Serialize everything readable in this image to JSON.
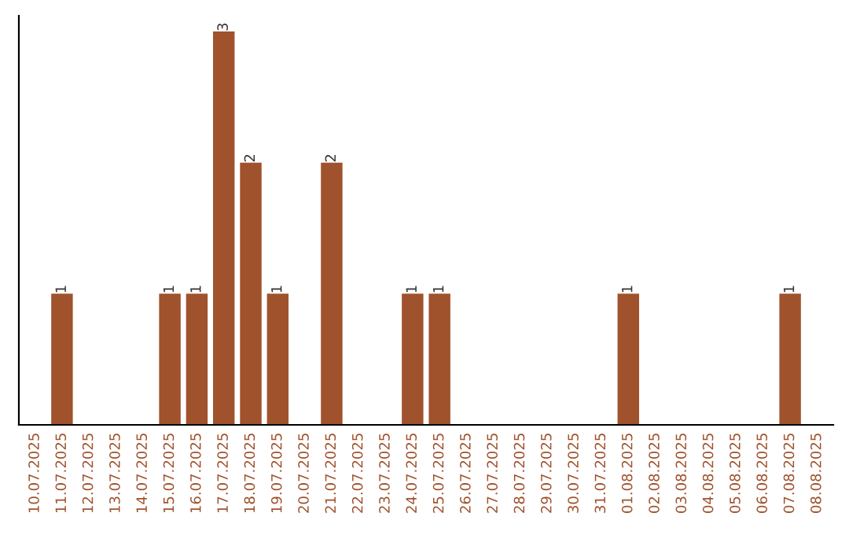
{
  "chart_data": {
    "type": "bar",
    "categories": [
      "10.07.2025",
      "11.07.2025",
      "12.07.2025",
      "13.07.2025",
      "14.07.2025",
      "15.07.2025",
      "16.07.2025",
      "17.07.2025",
      "18.07.2025",
      "19.07.2025",
      "20.07.2025",
      "21.07.2025",
      "22.07.2025",
      "23.07.2025",
      "24.07.2025",
      "25.07.2025",
      "26.07.2025",
      "27.07.2025",
      "28.07.2025",
      "29.07.2025",
      "30.07.2025",
      "31.07.2025",
      "01.08.2025",
      "02.08.2025",
      "03.08.2025",
      "04.08.2025",
      "05.08.2025",
      "06.08.2025",
      "07.08.2025",
      "08.08.2025"
    ],
    "values": [
      0,
      1,
      0,
      0,
      0,
      1,
      1,
      3,
      2,
      1,
      0,
      2,
      0,
      0,
      1,
      1,
      0,
      0,
      0,
      0,
      0,
      0,
      1,
      0,
      0,
      0,
      0,
      0,
      1,
      0
    ],
    "color": "#a0522d",
    "value_labels": [
      null,
      "1",
      null,
      null,
      null,
      "1",
      "1",
      "3",
      "2",
      "1",
      null,
      "2",
      null,
      null,
      "1",
      "1",
      null,
      null,
      null,
      null,
      null,
      null,
      "1",
      null,
      null,
      null,
      null,
      null,
      "1",
      null
    ],
    "tick_labels": "x",
    "grid": false,
    "legend": false
  }
}
